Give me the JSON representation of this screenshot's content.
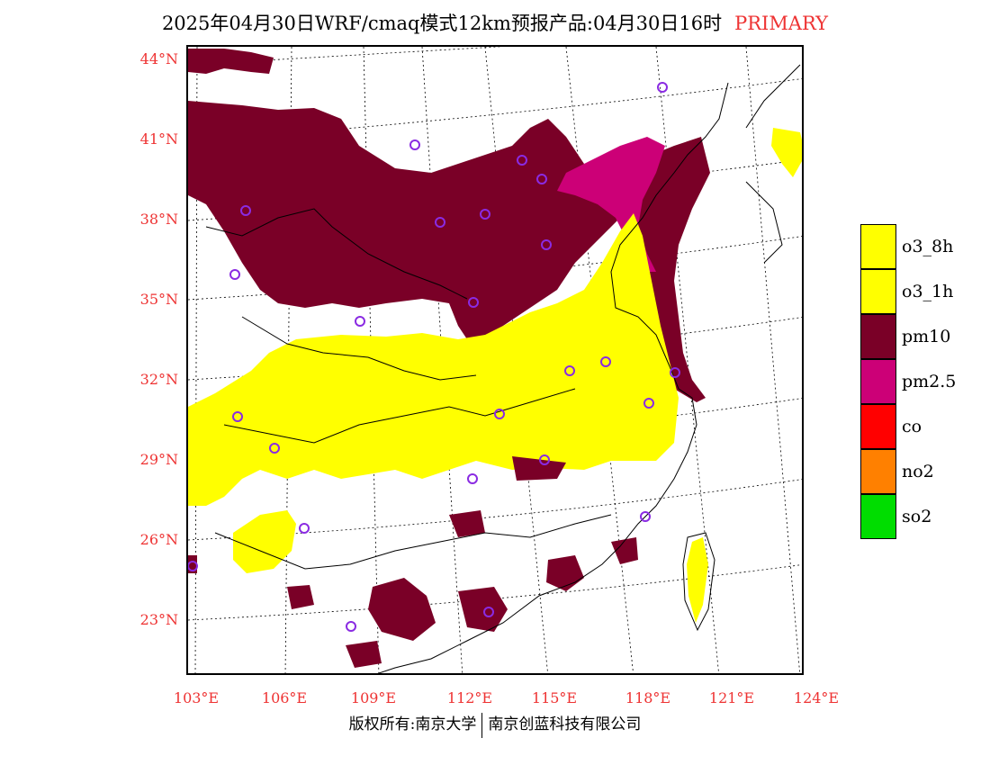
{
  "title": {
    "main": "2025年04月30日WRF/cmaq模式12km预报产品:04月30日16时",
    "tag": "PRIMARY"
  },
  "axes": {
    "lat_labels": [
      "44°N",
      "41°N",
      "38°N",
      "35°N",
      "32°N",
      "29°N",
      "26°N",
      "23°N"
    ],
    "lon_labels": [
      "103°E",
      "106°E",
      "109°E",
      "112°E",
      "115°E",
      "118°E",
      "121°E",
      "124°E"
    ]
  },
  "legend": [
    {
      "label": "o3_8h",
      "color": "#ffff00"
    },
    {
      "label": "o3_1h",
      "color": "#ffff00"
    },
    {
      "label": "pm10",
      "color": "#7a0027"
    },
    {
      "label": "pm2.5",
      "color": "#cc0077"
    },
    {
      "label": "co",
      "color": "#ff0000"
    },
    {
      "label": "no2",
      "color": "#ff8000"
    },
    {
      "label": "so2",
      "color": "#00dd00"
    }
  ],
  "credit": {
    "left": "版权所有:南京大学",
    "right": "南京创蓝科技有限公司"
  },
  "colors": {
    "pm10": "#7a0027",
    "pm25": "#cc0077",
    "o3": "#ffff00",
    "axis_label": "#ee3333",
    "station_marker": "#8a2be2"
  }
}
